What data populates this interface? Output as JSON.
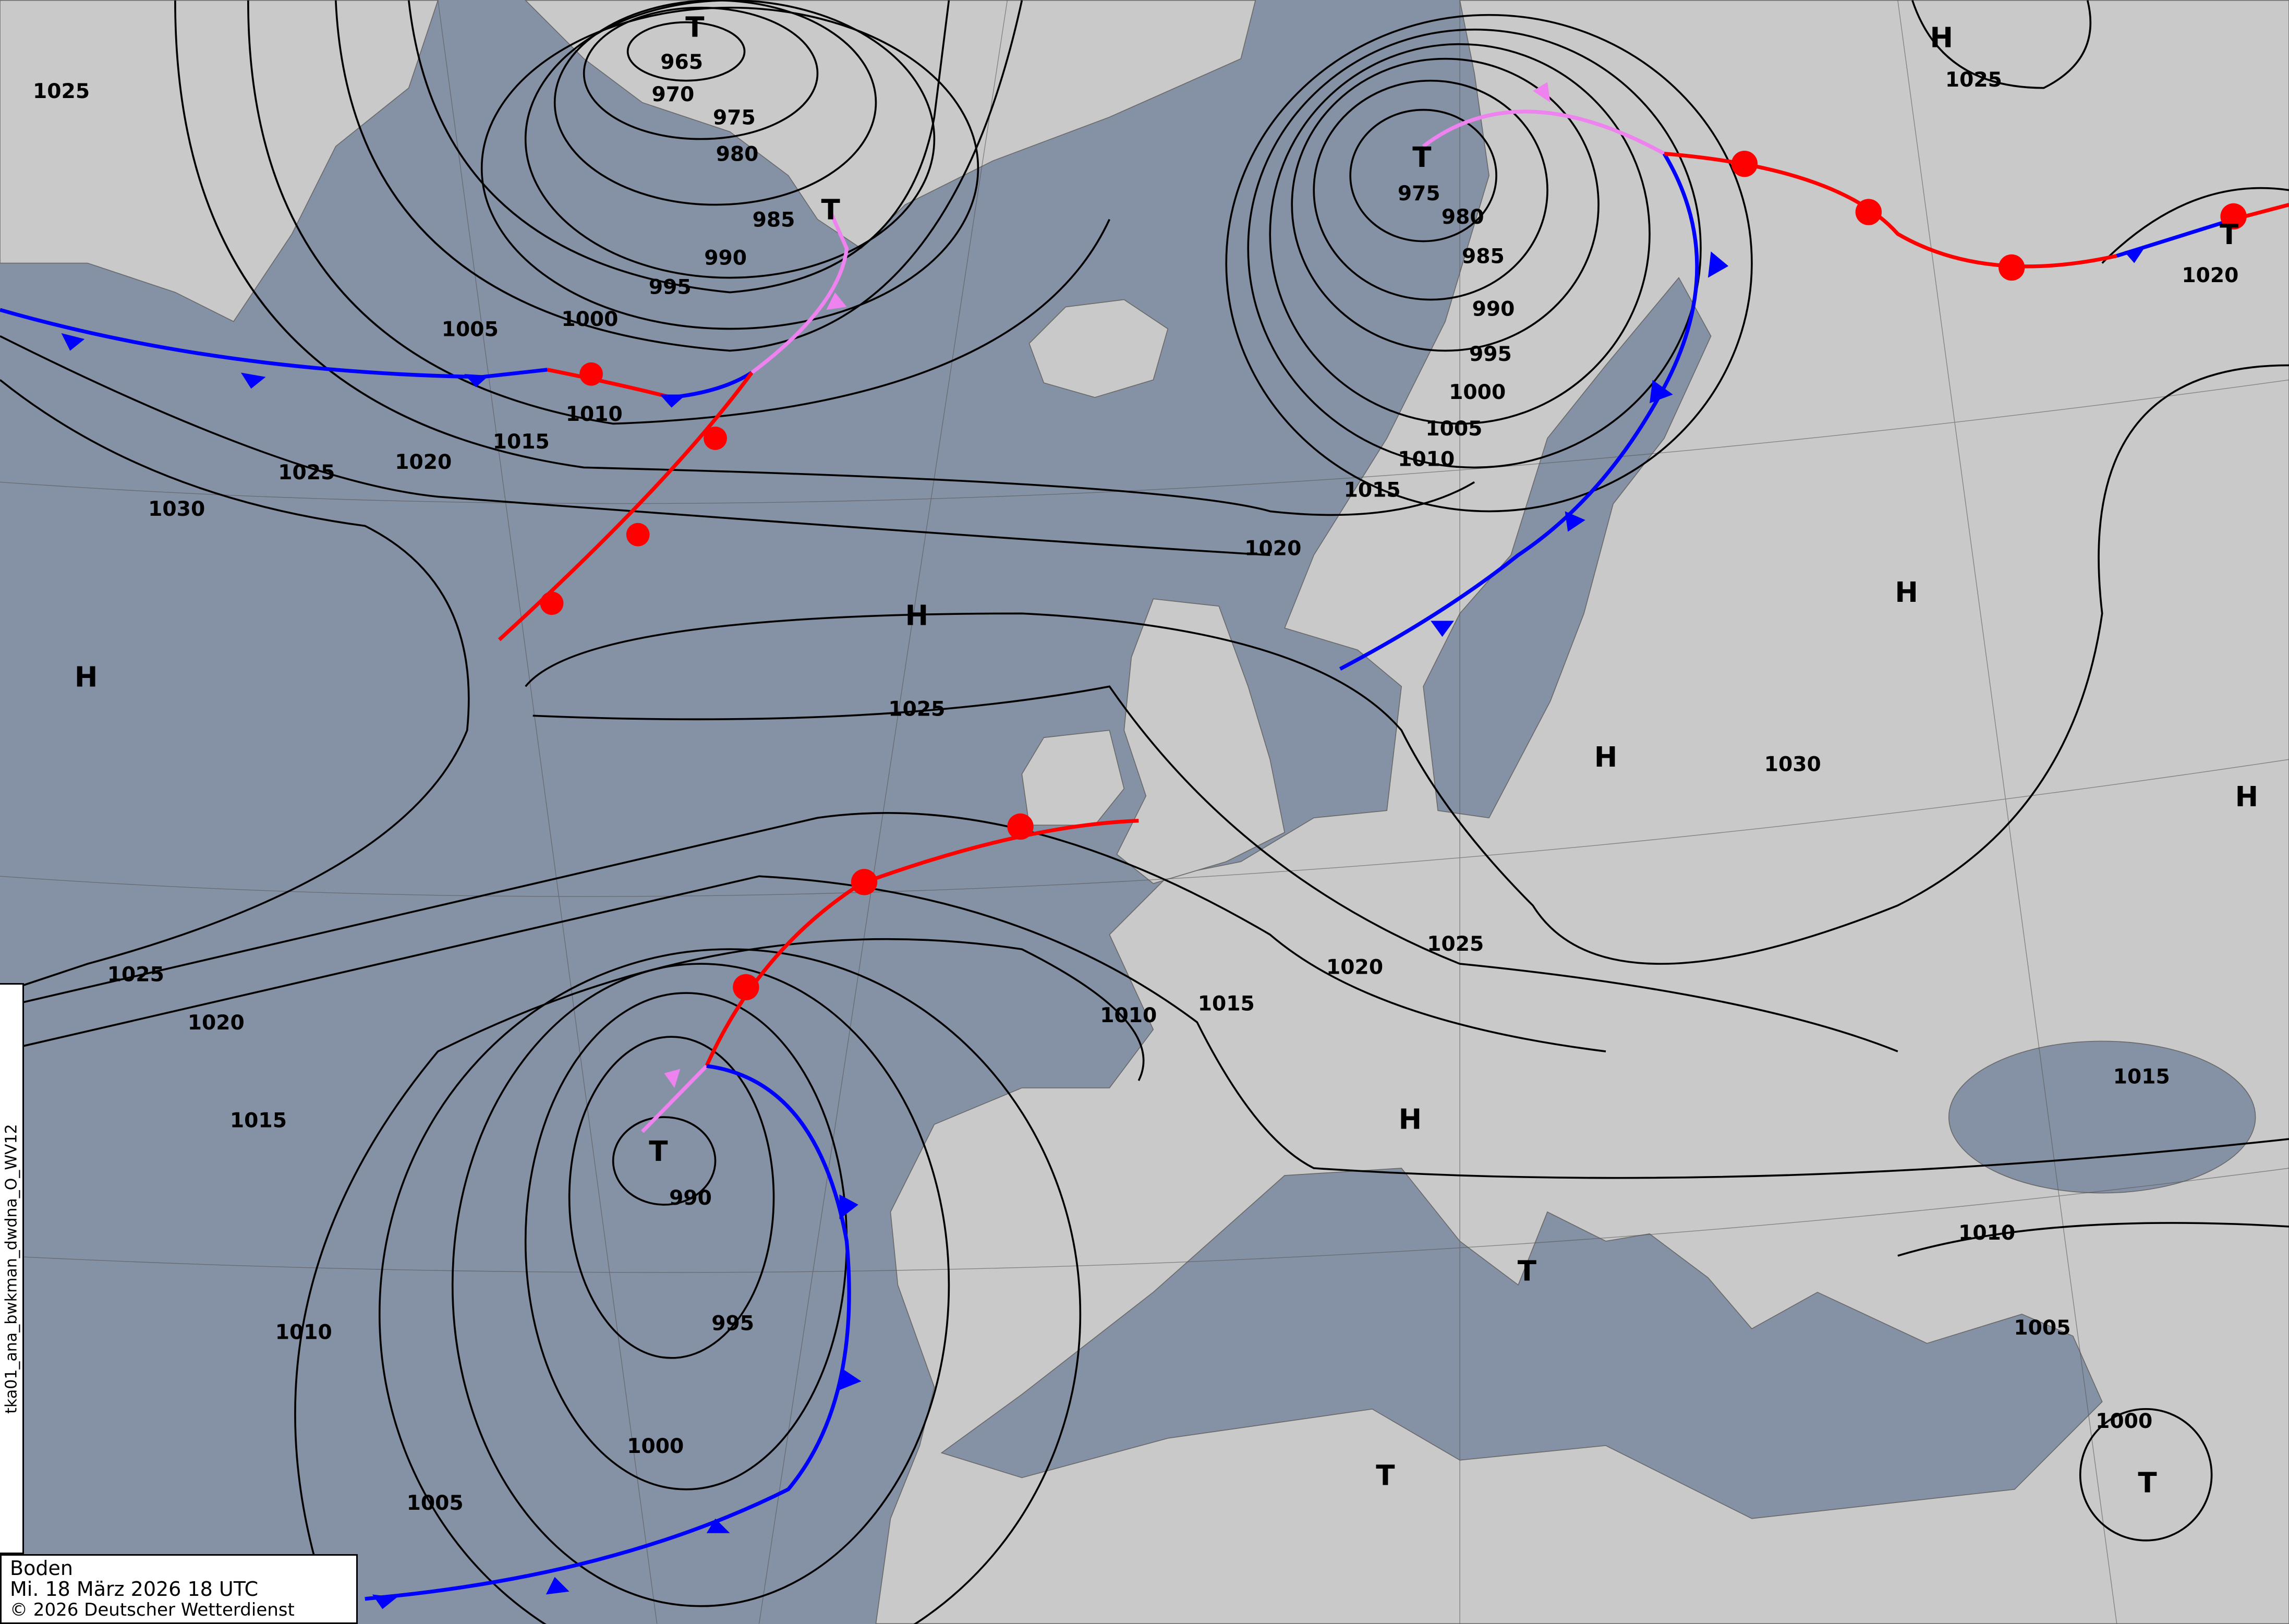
{
  "map": {
    "level": "Boden",
    "valid_time": "Mi. 18 März 2026 18 UTC",
    "copyright": "© 2026 Deutscher Wetterdienst",
    "product_id": "tka01_ana_bwkman_dwdna_O_WV12",
    "colors": {
      "sea": "#8591a5",
      "land": "#c9c9c9",
      "isobar": "#000000",
      "cold_front": "#0000ff",
      "warm_front": "#ff0000",
      "occlusion": "#ee82ee"
    },
    "isobar_labels": [
      "965",
      "970",
      "975",
      "980",
      "985",
      "990",
      "995",
      "1000",
      "1005",
      "1010",
      "1015",
      "1020",
      "1025",
      "1030",
      "1025",
      "1025",
      "1020",
      "1015",
      "1010",
      "1005",
      "1000",
      "995",
      "990",
      "985",
      "980",
      "975",
      "1030",
      "1025",
      "1020",
      "1015",
      "1010",
      "1025",
      "1020",
      "1015",
      "1010",
      "990",
      "995",
      "1000",
      "1005",
      "1025",
      "1020",
      "1015",
      "1010",
      "1005",
      "1000"
    ],
    "pressure_centers": [
      "T",
      "T",
      "T",
      "H",
      "T",
      "H",
      "H",
      "H",
      "H",
      "H",
      "H",
      "T",
      "T",
      "T",
      "T"
    ],
    "fronts": [
      "cold",
      "warm",
      "occlusion",
      "cold",
      "warm",
      "occlusion",
      "cold",
      "warm"
    ]
  }
}
